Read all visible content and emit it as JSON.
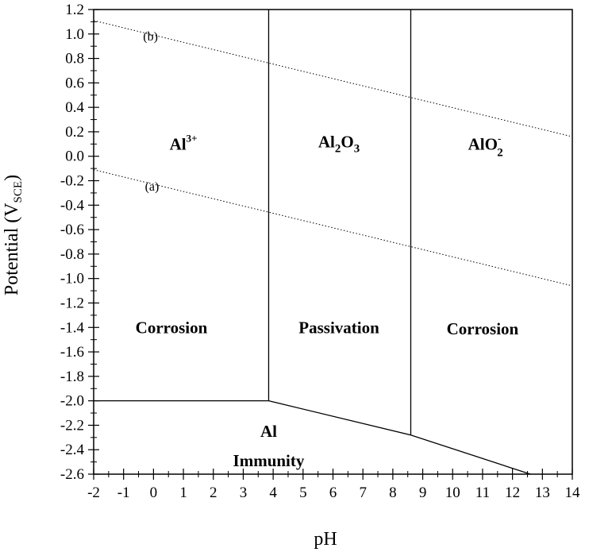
{
  "chart_data": {
    "type": "line",
    "title": "",
    "xlabel": "pH",
    "ylabel": {
      "main": "Potential (V",
      "sub": "SCE",
      "close": ")"
    },
    "xlim": [
      -2,
      14
    ],
    "ylim": [
      -2.6,
      1.2
    ],
    "x_ticks": [
      "-2",
      "-1",
      "0",
      "1",
      "2",
      "3",
      "4",
      "5",
      "6",
      "7",
      "8",
      "9",
      "10",
      "11",
      "12",
      "13",
      "14"
    ],
    "y_ticks": [
      "-2.6",
      "-2.4",
      "-2.2",
      "-2.0",
      "-1.8",
      "-1.6",
      "-1.4",
      "-1.2",
      "-1.0",
      "-0.8",
      "-0.6",
      "-0.4",
      "-0.2",
      "0.0",
      "0.2",
      "0.4",
      "0.6",
      "0.8",
      "1.0",
      "1.2"
    ],
    "grid": false,
    "boundaries": [
      {
        "name": "Al/Al3+",
        "style": "solid",
        "points": [
          [
            -2,
            -2.0
          ],
          [
            3.85,
            -2.0
          ]
        ]
      },
      {
        "name": "Al/Al2O3",
        "style": "solid",
        "points": [
          [
            3.85,
            -2.0
          ],
          [
            8.6,
            -2.28
          ],
          [
            12.6,
            -2.6
          ]
        ]
      },
      {
        "name": "Al3+/Al2O3",
        "style": "solid",
        "points": [
          [
            3.85,
            -2.0
          ],
          [
            3.85,
            1.2
          ]
        ]
      },
      {
        "name": "Al2O3/AlO2-",
        "style": "solid",
        "points": [
          [
            8.6,
            -2.28
          ],
          [
            8.6,
            1.2
          ]
        ]
      }
    ],
    "series": [
      {
        "name": "(a)",
        "style": "dotted",
        "x": [
          -2,
          14
        ],
        "y": [
          -0.11,
          -1.06
        ]
      },
      {
        "name": "(b)",
        "style": "dotted",
        "x": [
          -2,
          14
        ],
        "y": [
          1.11,
          0.16
        ]
      }
    ],
    "line_labels": [
      {
        "text": "(a)",
        "x": -0.05,
        "y": -0.25
      },
      {
        "text": "(b)",
        "x": -0.1,
        "y": 0.98
      }
    ],
    "annotations": [
      {
        "id": "al3",
        "main": "Al",
        "sup": "3+",
        "x": 1.0,
        "y": 0.1
      },
      {
        "id": "al2o3",
        "text_parts": [
          "Al",
          "2",
          "O",
          "3"
        ],
        "x": 6.2,
        "y": 0.12
      },
      {
        "id": "alo2",
        "main": "AlO",
        "sup": "-",
        "sub": "2",
        "x": 11.1,
        "y": 0.1
      },
      {
        "id": "corrosion-left",
        "text": "Corrosion",
        "x": 0.6,
        "y": -1.4
      },
      {
        "id": "passivation",
        "text": "Passivation",
        "x": 6.2,
        "y": -1.4
      },
      {
        "id": "corrosion-right",
        "text": "Corrosion",
        "x": 11.0,
        "y": -1.41
      },
      {
        "id": "al",
        "text": "Al",
        "x": 3.85,
        "y": -2.25
      },
      {
        "id": "immunity",
        "text": "Immunity",
        "x": 3.85,
        "y": -2.49
      }
    ]
  }
}
